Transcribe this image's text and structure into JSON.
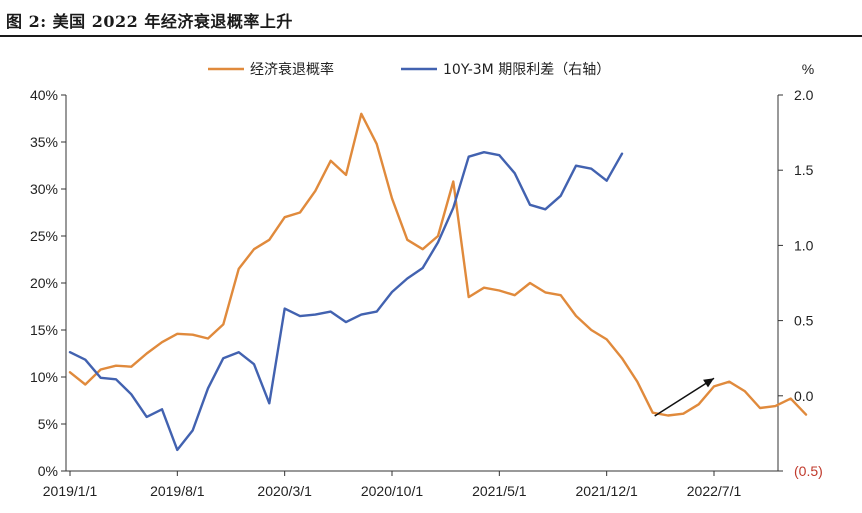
{
  "figure_title": "图 2:    美国 2022 年经济衰退概率上升",
  "chart_data": {
    "type": "line",
    "title": "图 2:    美国 2022 年经济衰退概率上升",
    "x_ticks": [
      "2019/1/1",
      "2019/8/1",
      "2020/3/1",
      "2020/10/1",
      "2021/5/1",
      "2021/12/1",
      "2022/7/1"
    ],
    "left_axis": {
      "range": [
        0,
        40
      ],
      "ticks": [
        0,
        5,
        10,
        15,
        20,
        25,
        30,
        35,
        40
      ],
      "tick_labels": [
        "0%",
        "5%",
        "10%",
        "15%",
        "20%",
        "25%",
        "30%",
        "35%",
        "40%"
      ]
    },
    "right_axis": {
      "unit_label": "%",
      "range": [
        -0.5,
        2.0
      ],
      "ticks": [
        -0.5,
        0,
        0.5,
        1.0,
        1.5,
        2.0
      ],
      "tick_labels": [
        "(0.5)",
        "0.0",
        "0.5",
        "1.0",
        "1.5",
        "2.0"
      ]
    },
    "legend_placement": "top-center",
    "grid": false,
    "series": [
      {
        "name": "经济衰退概率",
        "axis": "left",
        "color": "#e08a3c",
        "x": [
          "2019-01",
          "2019-02",
          "2019-03",
          "2019-04",
          "2019-05",
          "2019-06",
          "2019-07",
          "2019-08",
          "2019-09",
          "2019-10",
          "2019-11",
          "2019-12",
          "2020-01",
          "2020-02",
          "2020-03",
          "2020-04",
          "2020-05",
          "2020-06",
          "2020-07",
          "2020-08",
          "2020-09",
          "2020-10",
          "2020-11",
          "2020-12",
          "2021-01",
          "2021-02",
          "2021-03",
          "2021-04",
          "2021-05",
          "2021-06",
          "2021-07",
          "2021-08",
          "2021-09",
          "2021-10",
          "2021-11",
          "2021-12",
          "2022-01",
          "2022-02",
          "2022-03",
          "2022-04",
          "2022-05",
          "2022-06",
          "2022-07",
          "2022-08",
          "2022-09",
          "2022-10",
          "2022-11",
          "2022-12",
          "2023-01"
        ],
        "values": [
          10.5,
          9.2,
          10.8,
          11.2,
          11.1,
          12.5,
          13.7,
          14.6,
          14.5,
          14.1,
          15.6,
          21.5,
          23.6,
          24.6,
          27.0,
          27.5,
          29.8,
          33.0,
          31.5,
          38.0,
          34.8,
          29.0,
          24.6,
          23.6,
          25.0,
          30.8,
          18.5,
          19.5,
          19.2,
          18.7,
          20.0,
          19.0,
          18.7,
          16.5,
          15.0,
          14.0,
          12.0,
          9.5,
          6.2,
          5.9,
          6.1,
          7.1,
          9.0,
          9.5,
          8.5,
          6.7,
          6.9,
          7.7,
          6.0
        ]
      },
      {
        "name": "10Y-3M 期限利差（右轴）",
        "axis": "right",
        "color": "#4262b0",
        "x": [
          "2019-01",
          "2019-02",
          "2019-03",
          "2019-04",
          "2019-05",
          "2019-06",
          "2019-07",
          "2019-08",
          "2019-09",
          "2019-10",
          "2019-11",
          "2019-12",
          "2020-01",
          "2020-02",
          "2020-03",
          "2020-04",
          "2020-05",
          "2020-06",
          "2020-07",
          "2020-08",
          "2020-09",
          "2020-10",
          "2020-11",
          "2020-12",
          "2021-01",
          "2021-02",
          "2021-03",
          "2021-04",
          "2021-05",
          "2021-06",
          "2021-07",
          "2021-08",
          "2021-09",
          "2021-10",
          "2021-11",
          "2021-12",
          "2022-01"
        ],
        "values": [
          0.29,
          0.24,
          0.12,
          0.11,
          0.01,
          -0.14,
          -0.09,
          -0.36,
          -0.23,
          0.05,
          0.25,
          0.29,
          0.21,
          -0.05,
          0.58,
          0.53,
          0.54,
          0.56,
          0.49,
          0.54,
          0.56,
          0.69,
          0.78,
          0.85,
          1.02,
          1.25,
          1.59,
          1.62,
          1.6,
          1.48,
          1.27,
          1.24,
          1.33,
          1.53,
          1.51,
          1.43,
          1.61
        ]
      }
    ],
    "annotations": [
      {
        "type": "arrow",
        "from": [
          "2022-03",
          5.0
        ],
        "to": [
          "2022-07",
          8.8
        ],
        "color": "#111111"
      }
    ]
  }
}
